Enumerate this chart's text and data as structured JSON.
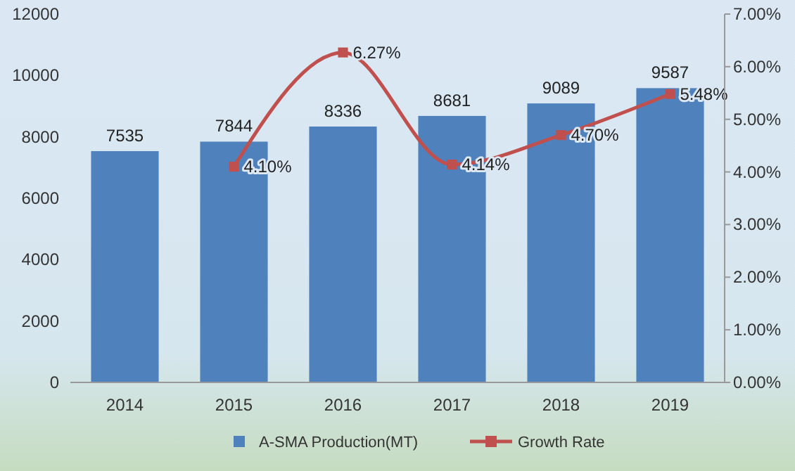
{
  "chart_data": {
    "type": "bar",
    "categories": [
      "2014",
      "2015",
      "2016",
      "2017",
      "2018",
      "2019"
    ],
    "series": [
      {
        "name": "A-SMA Production(MT)",
        "color": "#4f81bd",
        "values": [
          7535,
          7844,
          8336,
          8681,
          9089,
          9587
        ],
        "value_labels": [
          "7535",
          "7844",
          "8336",
          "8681",
          "9089",
          "9587"
        ]
      },
      {
        "name": "Growth Rate",
        "type": "line",
        "axis": "y2",
        "color": "#c0504d",
        "marker": "square",
        "values": [
          null,
          4.1,
          6.27,
          4.14,
          4.7,
          5.48
        ],
        "value_labels": [
          null,
          "4.10%",
          "6.27%",
          "4.14%",
          "4.70%",
          "5.48%"
        ]
      }
    ],
    "ylim": [
      0,
      12000
    ],
    "yticks": [
      0,
      2000,
      4000,
      6000,
      8000,
      10000,
      12000
    ],
    "y2lim": [
      0,
      7
    ],
    "y2ticks": [
      {
        "value": 0,
        "label": "0.00%"
      },
      {
        "value": 1,
        "label": "1.00%"
      },
      {
        "value": 2,
        "label": "2.00%"
      },
      {
        "value": 3,
        "label": "3.00%"
      },
      {
        "value": 4,
        "label": "4.00%"
      },
      {
        "value": 5,
        "label": "5.00%"
      },
      {
        "value": 6,
        "label": "6.00%"
      },
      {
        "value": 7,
        "label": "7.00%"
      }
    ],
    "legend": "bottom",
    "grid": false
  }
}
